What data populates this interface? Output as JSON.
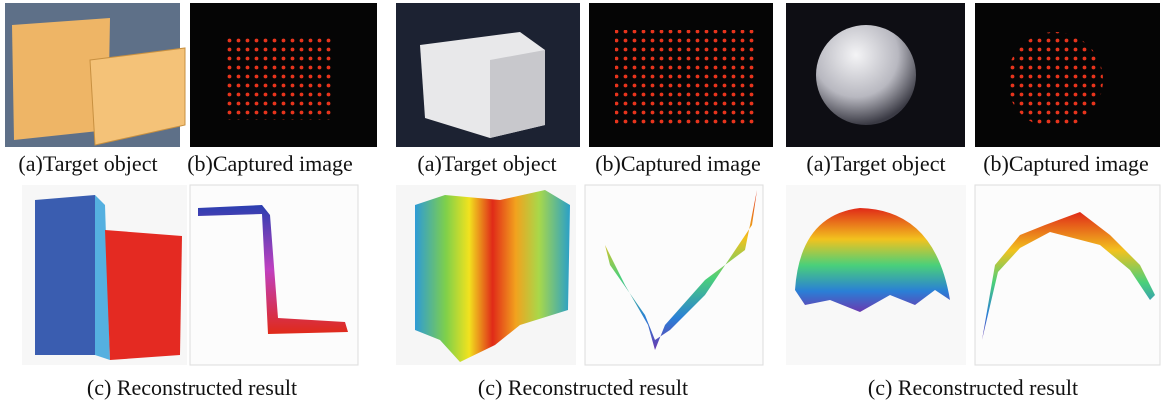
{
  "groups": [
    {
      "caption_a": "(a)Target object",
      "caption_b": "(b)Captured image",
      "caption_c": "(c) Reconstructed result"
    },
    {
      "caption_a": "(a)Target object",
      "caption_b": "(b)Captured image",
      "caption_c": "(c) Reconstructed result"
    },
    {
      "caption_a": "(a)Target object",
      "caption_b": "(b)Captured image",
      "caption_c": "(c) Reconstructed result"
    }
  ]
}
